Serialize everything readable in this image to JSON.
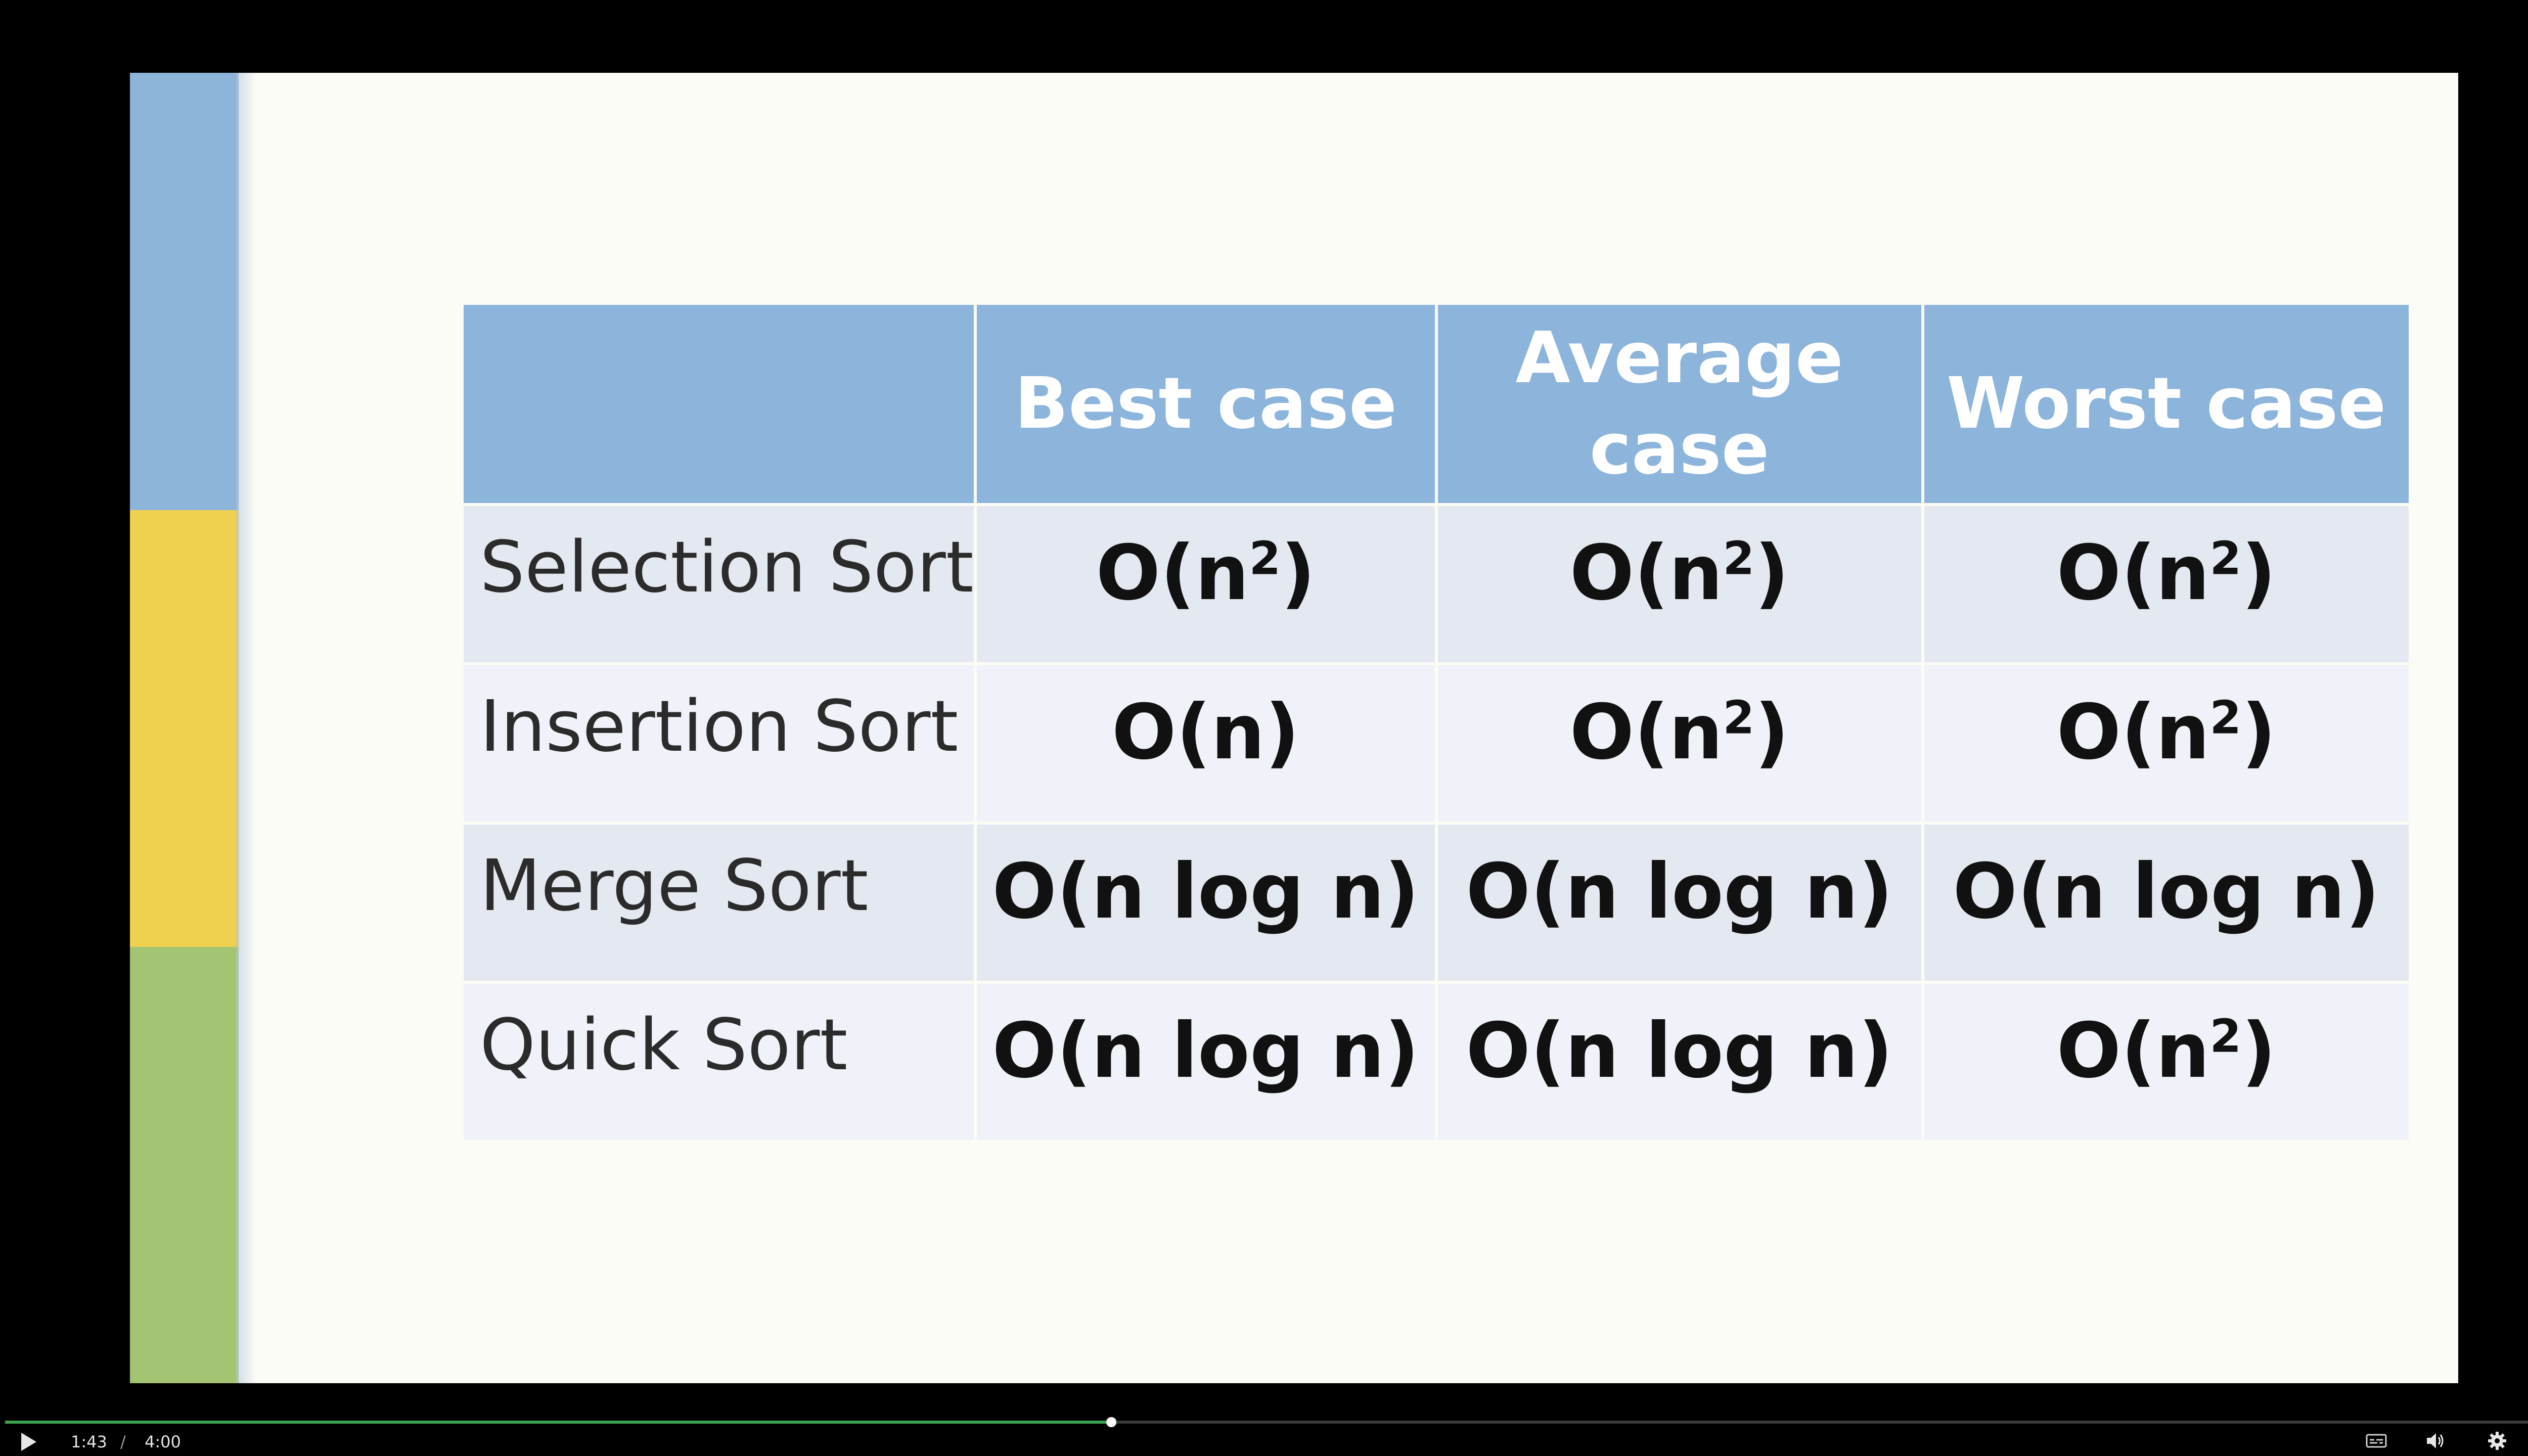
{
  "colors": {
    "background": "#000000",
    "slide_background": "#fcfcf7",
    "stripe_blue": "#8db4d9",
    "stripe_yellow": "#efd04f",
    "stripe_green": "#a3c472",
    "header_fill": "#8db4db",
    "row_odd_fill": "#e4e8f0",
    "row_even_fill": "#eff2f8",
    "progress_fill": "#3fa34d"
  },
  "slide": {
    "table": {
      "corner_header": "",
      "headers": [
        "Best case",
        "Average case",
        "Worst case"
      ],
      "rows": [
        {
          "label": "Selection Sort",
          "cells": [
            {
              "base": "O(n",
              "sup": "2",
              "end": ")"
            },
            {
              "base": "O(n",
              "sup": "2",
              "end": ")"
            },
            {
              "base": "O(n",
              "sup": "2",
              "end": ")"
            }
          ]
        },
        {
          "label": "Insertion Sort",
          "cells": [
            {
              "base": "O(n)",
              "sup": "",
              "end": ""
            },
            {
              "base": "O(n",
              "sup": "2",
              "end": ")"
            },
            {
              "base": "O(n",
              "sup": "2",
              "end": ")"
            }
          ]
        },
        {
          "label": "Merge Sort",
          "cells": [
            {
              "base": "O(n log n)",
              "sup": "",
              "end": ""
            },
            {
              "base": "O(n log n)",
              "sup": "",
              "end": ""
            },
            {
              "base": "O(n log n)",
              "sup": "",
              "end": ""
            }
          ]
        },
        {
          "label": "Quick Sort",
          "cells": [
            {
              "base": "O(n log n)",
              "sup": "",
              "end": ""
            },
            {
              "base": "O(n log n)",
              "sup": "",
              "end": ""
            },
            {
              "base": "O(n",
              "sup": "2",
              "end": ")"
            }
          ]
        }
      ]
    }
  },
  "player": {
    "current_time": "1:43",
    "separator": "/",
    "total_time": "4:00",
    "progress_fraction": 0.429,
    "icons": {
      "play": "play-icon",
      "captions": "captions-icon",
      "volume": "volume-icon",
      "settings": "gear-icon",
      "exit_fullscreen": "exit-fullscreen-icon"
    }
  }
}
